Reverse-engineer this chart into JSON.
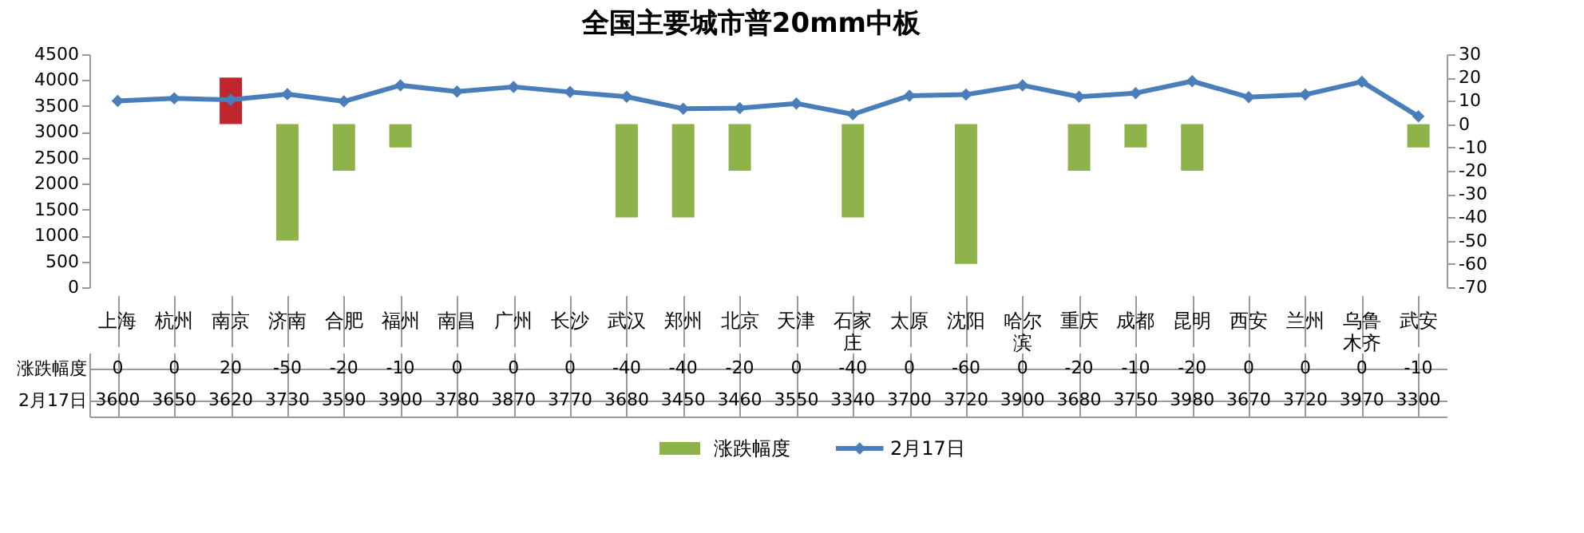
{
  "chart_data": {
    "type": "bar",
    "title": "全国主要城市普20mm中板",
    "categories": [
      "上海",
      "杭州",
      "南京",
      "济南",
      "合肥",
      "福州",
      "南昌",
      "广州",
      "长沙",
      "武汉",
      "郑州",
      "北京",
      "天津",
      "石家庄",
      "太原",
      "沈阳",
      "哈尔滨",
      "重庆",
      "成都",
      "昆明",
      "西安",
      "兰州",
      "乌鲁木齐",
      "武安"
    ],
    "series": [
      {
        "name": "涨跌幅度",
        "axis": "y2",
        "color": "#8db34a",
        "colors": [
          "#8db34a",
          "#8db34a",
          "#c0262d",
          "#8db34a",
          "#8db34a",
          "#8db34a",
          "#8db34a",
          "#8db34a",
          "#8db34a",
          "#8db34a",
          "#8db34a",
          "#8db34a",
          "#8db34a",
          "#8db34a",
          "#8db34a",
          "#8db34a",
          "#8db34a",
          "#8db34a",
          "#8db34a",
          "#8db34a",
          "#8db34a",
          "#8db34a",
          "#8db34a",
          "#8db34a"
        ],
        "values": [
          0,
          0,
          20,
          -50,
          -20,
          -10,
          0,
          0,
          0,
          -40,
          -40,
          -20,
          0,
          -40,
          0,
          -60,
          0,
          -20,
          -10,
          -20,
          0,
          0,
          0,
          -10
        ]
      },
      {
        "name": "2月17日",
        "type": "line",
        "color": "#4a7ebb",
        "values": [
          3600,
          3650,
          3620,
          3730,
          3590,
          3900,
          3780,
          3870,
          3770,
          3680,
          3450,
          3460,
          3550,
          3340,
          3700,
          3720,
          3900,
          3680,
          3750,
          3980,
          3670,
          3720,
          3970,
          3300
        ]
      }
    ],
    "ylim": [
      0,
      4500
    ],
    "yticks": [
      0,
      500,
      1000,
      1500,
      2000,
      2500,
      3000,
      3500,
      4000,
      4500
    ],
    "y2lim": [
      -70,
      30
    ],
    "y2ticks": [
      -70,
      -60,
      -50,
      -40,
      -30,
      -20,
      -10,
      0,
      10,
      20,
      30
    ],
    "marker": "diamond",
    "legend": "bottom",
    "data_labels": true
  }
}
